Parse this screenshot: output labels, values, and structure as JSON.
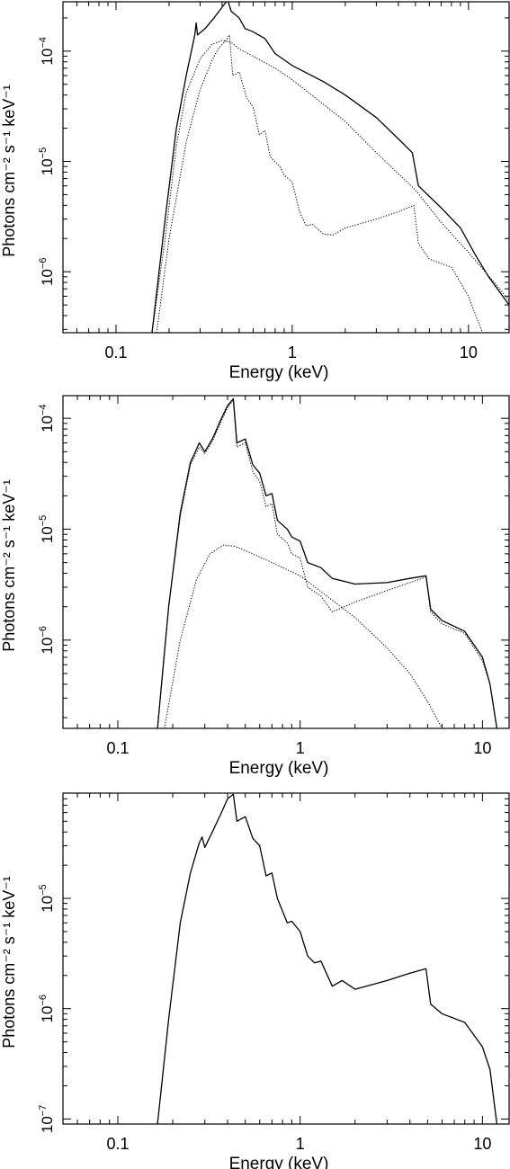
{
  "chart_data": [
    {
      "type": "line",
      "xlabel": "Energy (keV)",
      "ylabel": "Photons cm⁻² s⁻¹ keV⁻¹",
      "x_scale": "log",
      "y_scale": "log",
      "xlim": [
        0.05,
        17
      ],
      "ylim": [
        2.8e-07,
        0.00028
      ],
      "x_ticks": [
        {
          "value": 0.1,
          "label": "0.1"
        },
        {
          "value": 1,
          "label": "1"
        },
        {
          "value": 10,
          "label": "10"
        }
      ],
      "y_ticks": [
        {
          "value": 0.0001,
          "mantissa": "10",
          "exp": "−4"
        },
        {
          "value": 1e-05,
          "mantissa": "10",
          "exp": "−5"
        },
        {
          "value": 1e-06,
          "mantissa": "10",
          "exp": "−6"
        }
      ],
      "series": [
        {
          "style": "solid",
          "points": [
            [
              0.16,
              2.8e-07
            ],
            [
              0.19,
              3e-06
            ],
            [
              0.22,
              2e-05
            ],
            [
              0.25,
              6e-05
            ],
            [
              0.28,
              0.00014
            ],
            [
              0.285,
              0.00018
            ],
            [
              0.29,
              0.00014
            ],
            [
              0.32,
              0.00016
            ],
            [
              0.36,
              0.0002
            ],
            [
              0.4,
              0.00025
            ],
            [
              0.43,
              0.00029
            ],
            [
              0.45,
              0.00023
            ],
            [
              0.5,
              0.0002
            ],
            [
              0.54,
              0.00016
            ],
            [
              0.6,
              0.00015
            ],
            [
              0.7,
              0.00013
            ],
            [
              0.8,
              9.5e-05
            ],
            [
              1,
              7.4e-05
            ],
            [
              1.5,
              5.3e-05
            ],
            [
              2,
              4e-05
            ],
            [
              3,
              2.5e-05
            ],
            [
              4,
              1.6e-05
            ],
            [
              4.8,
              1.2e-05
            ],
            [
              5.2,
              6e-06
            ],
            [
              7,
              3.8e-06
            ],
            [
              9,
              2.5e-06
            ],
            [
              11,
              1.4e-06
            ],
            [
              13,
              9e-07
            ],
            [
              17,
              5e-07
            ]
          ]
        },
        {
          "style": "dotted",
          "points": [
            [
              0.16,
              2.8e-07
            ],
            [
              0.19,
              2e-06
            ],
            [
              0.22,
              1.4e-05
            ],
            [
              0.25,
              4.2e-05
            ],
            [
              0.3,
              8.5e-05
            ],
            [
              0.35,
              0.000115
            ],
            [
              0.4,
              0.000125
            ],
            [
              0.45,
              0.00012
            ],
            [
              0.5,
              0.000105
            ],
            [
              0.6,
              9e-05
            ],
            [
              0.8,
              7e-05
            ],
            [
              1,
              5.5e-05
            ],
            [
              2,
              2.3e-05
            ],
            [
              3,
              1.2e-05
            ],
            [
              5,
              5.5e-06
            ],
            [
              7,
              2.8e-06
            ],
            [
              10,
              1.5e-06
            ],
            [
              14,
              8e-07
            ],
            [
              17,
              5.5e-07
            ]
          ]
        },
        {
          "style": "dotted",
          "points": [
            [
              0.17,
              2.8e-07
            ],
            [
              0.2,
              2e-06
            ],
            [
              0.25,
              1.5e-05
            ],
            [
              0.3,
              4.5e-05
            ],
            [
              0.35,
              8.2e-05
            ],
            [
              0.38,
              0.000105
            ],
            [
              0.42,
              0.000125
            ],
            [
              0.44,
              0.00014
            ],
            [
              0.46,
              6e-05
            ],
            [
              0.5,
              6.5e-05
            ],
            [
              0.55,
              3.8e-05
            ],
            [
              0.6,
              3.1e-05
            ],
            [
              0.65,
              1.75e-05
            ],
            [
              0.7,
              1.9e-05
            ],
            [
              0.75,
              1.1e-05
            ],
            [
              0.85,
              9e-06
            ],
            [
              0.9,
              7.5e-06
            ],
            [
              1.0,
              6.5e-06
            ],
            [
              1.1,
              3.5e-06
            ],
            [
              1.2,
              2.6e-06
            ],
            [
              1.3,
              2.7e-06
            ],
            [
              1.5,
              2.2e-06
            ],
            [
              1.7,
              2.15e-06
            ],
            [
              2,
              2.5e-06
            ],
            [
              3,
              3e-06
            ],
            [
              4,
              3.5e-06
            ],
            [
              4.9,
              4e-06
            ],
            [
              5.2,
              1.8e-06
            ],
            [
              6,
              1.3e-06
            ],
            [
              8,
              1.1e-06
            ],
            [
              10,
              6e-07
            ],
            [
              11,
              4e-07
            ],
            [
              12,
              2.8e-07
            ]
          ]
        }
      ]
    },
    {
      "type": "line",
      "xlabel": "Energy (keV)",
      "ylabel": "Photons cm⁻² s⁻¹ keV⁻¹",
      "x_scale": "log",
      "y_scale": "log",
      "xlim": [
        0.05,
        14
      ],
      "ylim": [
        1.6e-07,
        0.00016
      ],
      "x_ticks": [
        {
          "value": 0.1,
          "label": "0.1"
        },
        {
          "value": 1,
          "label": "1"
        },
        {
          "value": 10,
          "label": "10"
        }
      ],
      "y_ticks": [
        {
          "value": 0.0001,
          "mantissa": "10",
          "exp": "−4"
        },
        {
          "value": 1e-05,
          "mantissa": "10",
          "exp": "−5"
        },
        {
          "value": 1e-06,
          "mantissa": "10",
          "exp": "−6"
        }
      ],
      "series": [
        {
          "style": "solid",
          "points": [
            [
              0.165,
              1.6e-07
            ],
            [
              0.19,
              2e-06
            ],
            [
              0.22,
              1.4e-05
            ],
            [
              0.25,
              4e-05
            ],
            [
              0.28,
              6e-05
            ],
            [
              0.3,
              5e-05
            ],
            [
              0.33,
              6.5e-05
            ],
            [
              0.37,
              0.0001
            ],
            [
              0.4,
              0.00013
            ],
            [
              0.43,
              0.00015
            ],
            [
              0.45,
              6e-05
            ],
            [
              0.5,
              6.5e-05
            ],
            [
              0.55,
              3.8e-05
            ],
            [
              0.6,
              3.2e-05
            ],
            [
              0.65,
              2e-05
            ],
            [
              0.7,
              2.1e-05
            ],
            [
              0.75,
              1.2e-05
            ],
            [
              0.85,
              1e-05
            ],
            [
              0.9,
              8.5e-06
            ],
            [
              1,
              7.8e-06
            ],
            [
              1.1,
              5e-06
            ],
            [
              1.3,
              4.5e-06
            ],
            [
              1.5,
              3.6e-06
            ],
            [
              2,
              3.2e-06
            ],
            [
              3,
              3.3e-06
            ],
            [
              4,
              3.6e-06
            ],
            [
              4.9,
              3.8e-06
            ],
            [
              5.2,
              1.9e-06
            ],
            [
              6,
              1.5e-06
            ],
            [
              8,
              1.2e-06
            ],
            [
              10,
              7e-07
            ],
            [
              11,
              4e-07
            ],
            [
              12,
              1.6e-07
            ]
          ]
        },
        {
          "style": "dotted",
          "points": [
            [
              0.165,
              1.6e-07
            ],
            [
              0.19,
              2e-06
            ],
            [
              0.22,
              1.3e-05
            ],
            [
              0.25,
              3.8e-05
            ],
            [
              0.28,
              5.5e-05
            ],
            [
              0.3,
              4.8e-05
            ],
            [
              0.33,
              6.2e-05
            ],
            [
              0.37,
              9.5e-05
            ],
            [
              0.4,
              0.000125
            ],
            [
              0.43,
              0.000145
            ],
            [
              0.45,
              5.5e-05
            ],
            [
              0.5,
              6e-05
            ],
            [
              0.55,
              3.3e-05
            ],
            [
              0.6,
              2.7e-05
            ],
            [
              0.65,
              1.6e-05
            ],
            [
              0.7,
              1.7e-05
            ],
            [
              0.75,
              9e-06
            ],
            [
              0.85,
              7.5e-06
            ],
            [
              0.9,
              6e-06
            ],
            [
              1,
              5.5e-06
            ],
            [
              1.1,
              3e-06
            ],
            [
              1.3,
              2.5e-06
            ],
            [
              1.5,
              1.8e-06
            ],
            [
              2,
              2.2e-06
            ],
            [
              3,
              2.8e-06
            ],
            [
              4,
              3.3e-06
            ],
            [
              4.9,
              3.7e-06
            ],
            [
              5.2,
              1.8e-06
            ],
            [
              6,
              1.4e-06
            ],
            [
              8,
              1.15e-06
            ],
            [
              10,
              6.5e-07
            ],
            [
              11,
              4e-07
            ],
            [
              12,
              1.6e-07
            ]
          ]
        },
        {
          "style": "dotted",
          "points": [
            [
              0.18,
              1.6e-07
            ],
            [
              0.22,
              1e-06
            ],
            [
              0.27,
              3.5e-06
            ],
            [
              0.32,
              6e-06
            ],
            [
              0.38,
              7.2e-06
            ],
            [
              0.44,
              7e-06
            ],
            [
              0.55,
              6e-06
            ],
            [
              0.7,
              5e-06
            ],
            [
              1,
              3.8e-06
            ],
            [
              2,
              1.6e-06
            ],
            [
              3,
              8.5e-07
            ],
            [
              4,
              5e-07
            ],
            [
              5,
              2.8e-07
            ],
            [
              6,
              1.6e-07
            ]
          ]
        }
      ]
    },
    {
      "type": "line",
      "xlabel": "Energy (keV)",
      "ylabel": "Photons cm⁻² s⁻¹ keV⁻¹",
      "x_scale": "log",
      "y_scale": "log",
      "xlim": [
        0.05,
        14
      ],
      "ylim": [
        9e-08,
        9e-05
      ],
      "x_ticks": [
        {
          "value": 0.1,
          "label": "0.1"
        },
        {
          "value": 1,
          "label": "1"
        },
        {
          "value": 10,
          "label": "10"
        }
      ],
      "y_ticks": [
        {
          "value": 1e-05,
          "mantissa": "10",
          "exp": "−5"
        },
        {
          "value": 1e-06,
          "mantissa": "10",
          "exp": "−6"
        },
        {
          "value": 1e-07,
          "mantissa": "10",
          "exp": "−7"
        }
      ],
      "series": [
        {
          "style": "solid",
          "points": [
            [
              0.165,
              9e-08
            ],
            [
              0.19,
              8e-07
            ],
            [
              0.22,
              6e-06
            ],
            [
              0.25,
              1.7e-05
            ],
            [
              0.28,
              3.2e-05
            ],
            [
              0.29,
              3.6e-05
            ],
            [
              0.3,
              2.9e-05
            ],
            [
              0.33,
              4e-05
            ],
            [
              0.37,
              6e-05
            ],
            [
              0.4,
              8e-05
            ],
            [
              0.43,
              8.8e-05
            ],
            [
              0.45,
              5e-05
            ],
            [
              0.5,
              5.5e-05
            ],
            [
              0.55,
              3.5e-05
            ],
            [
              0.6,
              3e-05
            ],
            [
              0.65,
              1.6e-05
            ],
            [
              0.7,
              1.7e-05
            ],
            [
              0.75,
              1e-05
            ],
            [
              0.85,
              6e-06
            ],
            [
              0.9,
              6.2e-06
            ],
            [
              1,
              5e-06
            ],
            [
              1.1,
              3e-06
            ],
            [
              1.2,
              2.6e-06
            ],
            [
              1.3,
              2.7e-06
            ],
            [
              1.5,
              1.6e-06
            ],
            [
              1.7,
              1.8e-06
            ],
            [
              2,
              1.5e-06
            ],
            [
              3,
              1.8e-06
            ],
            [
              4,
              2.1e-06
            ],
            [
              4.9,
              2.3e-06
            ],
            [
              5.2,
              1.1e-06
            ],
            [
              6,
              9e-07
            ],
            [
              8,
              7.5e-07
            ],
            [
              10,
              4.5e-07
            ],
            [
              11,
              2.8e-07
            ],
            [
              12,
              9e-08
            ]
          ]
        }
      ]
    }
  ]
}
